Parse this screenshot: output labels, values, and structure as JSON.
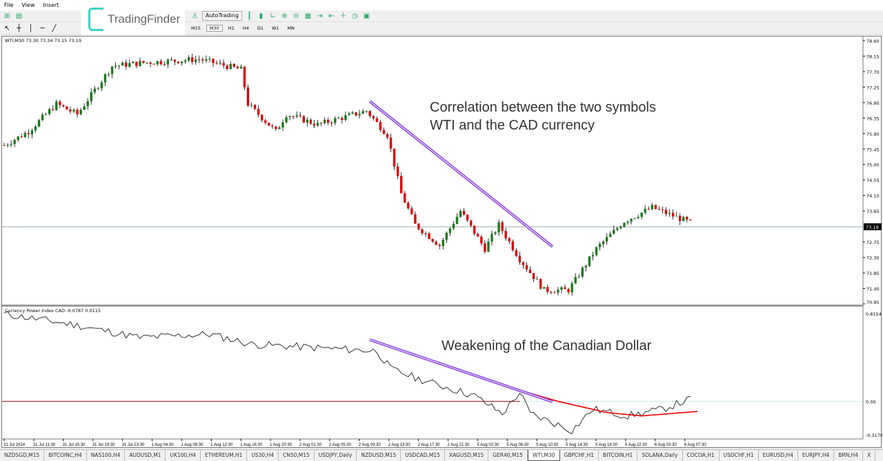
{
  "menu": [
    "File",
    "View",
    "Insert"
  ],
  "toolbar": {
    "autotrading": "AutoTrading",
    "timeframes": [
      "M15",
      "M30",
      "H1",
      "H4",
      "D1",
      "W1",
      "MN"
    ],
    "active_tf": "M30"
  },
  "logo": {
    "text": "TradingFinder"
  },
  "chart": {
    "header": "WTI,M30  73.30 73.34 73.15 73.19",
    "current_price": "73.19",
    "price_ticks": [
      "78.60",
      "78.15",
      "77.70",
      "77.25",
      "76.80",
      "76.35",
      "75.90",
      "75.45",
      "75.00",
      "74.55",
      "74.10",
      "73.65",
      "72.75",
      "72.30",
      "71.85",
      "71.40",
      "70.95"
    ],
    "price_path": [
      [
        0,
        75.56
      ],
      [
        7,
        75.96
      ],
      [
        15,
        76.76
      ],
      [
        21,
        76.46
      ],
      [
        31,
        77.86
      ],
      [
        40,
        77.96
      ],
      [
        56,
        78.06
      ],
      [
        68,
        77.76
      ],
      [
        70,
        76.76
      ],
      [
        78,
        75.96
      ],
      [
        81,
        76.46
      ],
      [
        90,
        76.16
      ],
      [
        104,
        76.56
      ],
      [
        110,
        75.86
      ],
      [
        114,
        74.15
      ],
      [
        118,
        73.25
      ],
      [
        125,
        72.65
      ],
      [
        131,
        73.65
      ],
      [
        138,
        72.55
      ],
      [
        142,
        73.25
      ],
      [
        148,
        72.25
      ],
      [
        155,
        71.35
      ],
      [
        162,
        71.35
      ],
      [
        170,
        72.55
      ],
      [
        178,
        73.35
      ],
      [
        186,
        73.75
      ],
      [
        197,
        73.31
      ]
    ],
    "up_color": "#1a7a1a",
    "down_color": "#dd0000",
    "annotation_top": [
      "Correlation between the two symbols",
      "WTI and the CAD currency"
    ],
    "annotation_bottom": "Weakening of the Canadian Dollar",
    "annotation_color": "#8a3fe0"
  },
  "indicator": {
    "header": "Currency Power Index CAD -0.0787 0.0115",
    "ticks": [
      "0.8154",
      "0.00",
      "-0.3176"
    ],
    "line": [
      [
        0,
        0.78
      ],
      [
        19,
        0.69
      ],
      [
        39,
        0.57
      ],
      [
        59,
        0.6
      ],
      [
        71,
        0.51
      ],
      [
        89,
        0.48
      ],
      [
        107,
        0.45
      ],
      [
        111,
        0.29
      ],
      [
        119,
        0.2
      ],
      [
        135,
        0.05
      ],
      [
        143,
        -0.11
      ],
      [
        148,
        0.08
      ],
      [
        151,
        -0.11
      ],
      [
        163,
        -0.26
      ],
      [
        169,
        -0.07
      ],
      [
        179,
        -0.13
      ],
      [
        189,
        -0.07
      ],
      [
        197,
        0.02
      ]
    ],
    "signal": [
      [
        148,
        0.1
      ],
      [
        159,
        0.0
      ],
      [
        173,
        -0.1
      ],
      [
        183,
        -0.13
      ],
      [
        199,
        -0.09
      ]
    ]
  },
  "time_labels": [
    "31 Jul 2024",
    "31 Jul 11:30",
    "31 Jul 15:30",
    "31 Jul 19:30",
    "31 Jul 23:30",
    "1 Aug 04:30",
    "1 Aug 08:30",
    "1 Aug 12:30",
    "1 Aug 16:30",
    "1 Aug 20:30",
    "2 Aug 01:30",
    "2 Aug 05:30",
    "2 Aug 09:30",
    "2 Aug 13:30",
    "2 Aug 17:30",
    "2 Aug 21:30",
    "5 Aug 02:30",
    "5 Aug 06:30",
    "5 Aug 10:30",
    "5 Aug 14:30",
    "5 Aug 18:30",
    "5 Aug 22:30",
    "6 Aug 03:30",
    "6 Aug 07:30"
  ],
  "tabs": [
    "NZDSGD,M15",
    "BITCOINC,H4",
    "NAS100,H4",
    "AUDUSD,M1",
    "UK100,H4",
    "ETHEREUM,H1",
    "US30,H4",
    "CN50,M15",
    "USDJPY,Daily",
    "NZDUSD,M15",
    "USDCAD,M15",
    "XAGUSD,M15",
    "GER40,M15",
    "WTI,M30",
    "GBPCHF,H1",
    "BITCOIN,H1",
    "SOLANA,Daily",
    "COCOA,H1",
    "USDCHF,H1",
    "EURUSD,H4",
    "EURJPY,H4",
    "BRN,H4",
    "X"
  ],
  "active_tab": "WTI,M30"
}
